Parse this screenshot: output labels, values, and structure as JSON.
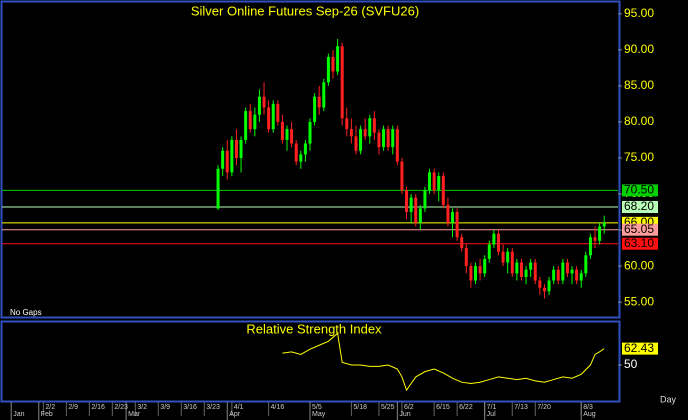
{
  "chart_data": [
    {
      "type": "candlestick",
      "title": "Silver Online Futures Sep-26 (SVFU26)",
      "annotation": "No Gaps",
      "xlim": [
        0,
        134
      ],
      "ylim": [
        52.8,
        96.5
      ],
      "yticks": [
        {
          "value": 55,
          "label": "55.00"
        },
        {
          "value": 60,
          "label": "60.00"
        },
        {
          "value": 65,
          "label": "65.00"
        },
        {
          "value": 70,
          "label": "70.00"
        },
        {
          "value": 75,
          "label": "75.00"
        },
        {
          "value": 80,
          "label": "80.00"
        },
        {
          "value": 85,
          "label": "85.00"
        },
        {
          "value": 90,
          "label": "90.00"
        },
        {
          "value": 95,
          "label": "95.00"
        }
      ],
      "up_color": "#00ff00",
      "down_color": "#ff2020",
      "x": [
        47,
        48,
        49,
        50,
        51,
        52,
        53,
        54,
        55,
        56,
        57,
        58,
        59,
        60,
        61,
        62,
        63,
        64,
        65,
        66,
        67,
        68,
        69,
        70,
        71,
        72,
        73,
        74,
        75,
        76,
        77,
        78,
        79,
        80,
        81,
        82,
        83,
        84,
        85,
        86,
        87,
        88,
        89,
        90,
        91,
        92,
        93,
        94,
        95,
        96,
        97,
        98,
        99,
        100,
        101,
        102,
        103,
        104,
        105,
        106,
        107,
        108,
        109,
        110,
        111,
        112,
        113,
        114,
        115,
        116,
        117,
        118,
        119,
        120,
        121,
        122,
        123,
        124,
        125,
        126,
        127,
        128,
        129,
        130,
        131
      ],
      "open": [
        68.0,
        73.5,
        76.0,
        73.0,
        77.5,
        75.0,
        77.5,
        81.5,
        79.0,
        81.0,
        83.5,
        82.0,
        79.0,
        82.5,
        80.0,
        77.5,
        79.0,
        77.0,
        74.5,
        75.5,
        77.0,
        80.0,
        83.5,
        82.0,
        85.5,
        89.0,
        87.0,
        90.5,
        80.5,
        79.0,
        78.0,
        76.0,
        79.0,
        78.0,
        80.5,
        78.5,
        76.5,
        79.0,
        76.5,
        79.0,
        74.5,
        70.5,
        67.5,
        69.5,
        66.0,
        68.0,
        70.5,
        73.0,
        70.5,
        72.5,
        68.5,
        66.0,
        67.5,
        64.0,
        62.5,
        60.0,
        58.0,
        60.0,
        59.0,
        61.0,
        63.0,
        64.5,
        62.0,
        60.5,
        62.0,
        59.0,
        60.5,
        58.5,
        59.5,
        60.5,
        58.0,
        57.0,
        56.5,
        58.0,
        59.5,
        58.0,
        60.5,
        59.0,
        59.5,
        58.0,
        59.0,
        61.5,
        64.0,
        63.5,
        65.5
      ],
      "high": [
        74.0,
        76.5,
        77.5,
        78.0,
        79.0,
        78.0,
        82.0,
        82.5,
        82.0,
        84.5,
        85.5,
        83.0,
        83.0,
        83.0,
        81.0,
        79.5,
        80.0,
        77.5,
        76.0,
        77.5,
        80.5,
        84.0,
        85.0,
        86.0,
        89.5,
        90.0,
        91.5,
        91.0,
        82.0,
        80.5,
        79.5,
        79.5,
        80.5,
        81.0,
        81.5,
        79.0,
        79.5,
        79.5,
        79.5,
        79.5,
        75.0,
        71.0,
        70.0,
        70.0,
        68.5,
        71.0,
        73.5,
        73.5,
        73.0,
        73.0,
        69.5,
        68.0,
        68.0,
        64.5,
        63.0,
        60.5,
        60.5,
        61.0,
        61.5,
        63.5,
        65.0,
        65.0,
        63.0,
        62.5,
        62.5,
        61.0,
        61.0,
        60.0,
        61.0,
        61.0,
        58.5,
        57.5,
        58.5,
        60.0,
        60.0,
        61.0,
        61.0,
        60.0,
        60.0,
        59.5,
        62.0,
        64.5,
        65.5,
        66.0,
        67.0
      ],
      "low": [
        67.8,
        72.5,
        72.0,
        72.5,
        74.0,
        73.0,
        77.0,
        78.5,
        78.0,
        80.0,
        81.0,
        78.5,
        78.5,
        79.5,
        77.0,
        76.0,
        76.5,
        74.0,
        73.5,
        74.5,
        76.0,
        79.5,
        81.0,
        81.5,
        85.0,
        86.0,
        86.5,
        79.5,
        78.0,
        77.0,
        75.5,
        75.5,
        77.5,
        77.0,
        77.5,
        75.5,
        76.0,
        76.0,
        75.5,
        74.0,
        70.0,
        66.5,
        66.0,
        65.5,
        65.0,
        67.5,
        70.0,
        70.0,
        69.0,
        68.0,
        65.5,
        64.0,
        63.5,
        62.0,
        59.0,
        57.0,
        57.5,
        58.0,
        58.5,
        60.5,
        62.5,
        61.5,
        60.0,
        59.0,
        58.5,
        58.0,
        58.0,
        57.5,
        58.5,
        57.5,
        56.0,
        55.5,
        56.0,
        57.5,
        57.5,
        57.5,
        58.5,
        57.5,
        57.5,
        57.0,
        58.5,
        61.0,
        62.5,
        63.0,
        64.5
      ],
      "close": [
        73.5,
        76.0,
        73.0,
        77.5,
        75.0,
        77.5,
        81.5,
        79.0,
        81.0,
        83.5,
        82.0,
        79.0,
        82.5,
        80.0,
        77.5,
        79.0,
        77.0,
        74.5,
        75.5,
        77.0,
        80.0,
        83.5,
        82.0,
        85.5,
        89.0,
        87.0,
        90.5,
        80.5,
        79.0,
        78.0,
        76.0,
        79.0,
        78.0,
        80.5,
        78.5,
        76.5,
        79.0,
        76.5,
        79.0,
        74.5,
        70.5,
        67.5,
        69.5,
        66.0,
        68.0,
        70.5,
        73.0,
        70.5,
        72.5,
        68.5,
        66.0,
        67.5,
        64.0,
        62.5,
        60.0,
        58.0,
        60.0,
        59.0,
        61.0,
        63.0,
        64.5,
        62.0,
        60.5,
        62.0,
        59.0,
        60.5,
        58.5,
        59.5,
        60.5,
        58.0,
        57.0,
        56.5,
        58.0,
        59.5,
        58.0,
        60.5,
        59.0,
        59.5,
        58.0,
        59.0,
        61.5,
        64.0,
        63.5,
        65.5,
        66.0
      ],
      "levels": [
        {
          "value": 70.5,
          "label": "70.50",
          "color": "#00d000"
        },
        {
          "value": 68.2,
          "label": "68.20",
          "color": "#b8ffb8"
        },
        {
          "value": 66,
          "label": "66.00",
          "color": "#ffff00"
        },
        {
          "value": 65.05,
          "label": "65.05",
          "color": "#ff9c9c"
        },
        {
          "value": 63.1,
          "label": "63.10",
          "color": "#ff1010"
        }
      ]
    },
    {
      "type": "line",
      "title": "Relative Strength Index",
      "color": "#ffff00",
      "xlim": [
        0,
        134
      ],
      "ylim": [
        22,
        82.6
      ],
      "yticks": [
        50
      ],
      "x": [
        61,
        63,
        65,
        67,
        69,
        71,
        73,
        74,
        76,
        78,
        80,
        82,
        84,
        86,
        87,
        88,
        89,
        90,
        92,
        94,
        96,
        98,
        100,
        102,
        104,
        106,
        108,
        110,
        112,
        114,
        116,
        118,
        120,
        122,
        124,
        126,
        128,
        129,
        130,
        131
      ],
      "values": [
        59,
        60,
        58,
        62,
        65,
        68,
        74,
        52,
        50,
        50,
        49,
        49,
        50,
        47,
        41,
        31,
        36,
        41,
        45,
        47,
        44,
        40,
        37,
        36,
        37,
        39,
        41,
        40,
        39,
        40,
        38,
        37,
        39,
        41,
        40,
        43,
        50,
        58,
        60,
        62.43
      ],
      "xticks": [
        {
          "value": 9,
          "label": "2/2"
        },
        {
          "value": 14,
          "label": "2/9"
        },
        {
          "value": 19,
          "label": "2/16"
        },
        {
          "value": 24,
          "label": "2/23"
        },
        {
          "value": 29,
          "label": "3/2"
        },
        {
          "value": 34,
          "label": "3/9"
        },
        {
          "value": 39,
          "label": "3/16"
        },
        {
          "value": 44,
          "label": "3/23"
        },
        {
          "value": 50,
          "label": "4/1"
        },
        {
          "value": 58,
          "label": "4/16"
        },
        {
          "value": 67,
          "label": "5/5"
        },
        {
          "value": 76,
          "label": "5/18"
        },
        {
          "value": 82,
          "label": "5/25"
        },
        {
          "value": 87,
          "label": "6/2"
        },
        {
          "value": 94,
          "label": "6/15"
        },
        {
          "value": 99,
          "label": "6/22"
        },
        {
          "value": 105,
          "label": "7/1"
        },
        {
          "value": 111,
          "label": "7/13"
        },
        {
          "value": 116,
          "label": "7/20"
        },
        {
          "value": 126,
          "label": "8/3"
        }
      ],
      "month_ticks": [
        {
          "value": 2,
          "label": "Jan"
        },
        {
          "value": 8,
          "label": "Feb"
        },
        {
          "value": 27,
          "label": "Mar"
        },
        {
          "value": 49,
          "label": "Apr"
        },
        {
          "value": 67,
          "label": "May"
        },
        {
          "value": 86,
          "label": "Jun"
        },
        {
          "value": 105,
          "label": "Jul"
        },
        {
          "value": 126,
          "label": "Aug"
        }
      ],
      "x_label": "Day"
    }
  ]
}
